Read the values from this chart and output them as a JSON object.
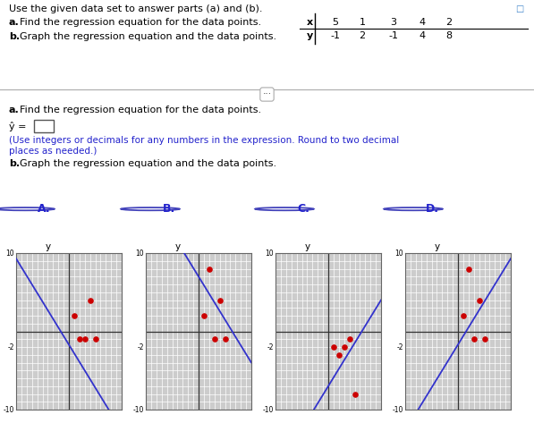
{
  "title_line1": "Use the given data set to answer parts (a) and (b).",
  "x_header": [
    "5",
    "1",
    "3",
    "4",
    "2"
  ],
  "y_header": [
    "-1",
    "2",
    "-1",
    "4",
    "8"
  ],
  "dot_color": "#cc0000",
  "line_color": "#3333cc",
  "bg_color": "#ffffff",
  "text_color_black": "#000000",
  "text_color_blue": "#2222cc",
  "separator_color": "#aaaaaa",
  "graph_bg": "#cccccc",
  "graph_grid_color": "#ffffff",
  "radio_color": "#4444bb",
  "graphs": [
    {
      "label": "A.",
      "slope": -1.1,
      "intercept": -1.7,
      "data_x": [
        1,
        2,
        3,
        4,
        5
      ],
      "data_y": [
        2,
        -1,
        -1,
        4,
        -1
      ]
    },
    {
      "label": "B.",
      "slope": -1.1,
      "intercept": 7.0,
      "data_x": [
        1,
        2,
        3,
        4,
        5
      ],
      "data_y": [
        2,
        8,
        -1,
        4,
        -1
      ]
    },
    {
      "label": "C.",
      "slope": 1.1,
      "intercept": -7.0,
      "data_x": [
        1,
        2,
        3,
        4,
        5
      ],
      "data_y": [
        -2,
        -3,
        -2,
        -1,
        -8
      ]
    },
    {
      "label": "D.",
      "slope": 1.1,
      "intercept": -1.7,
      "data_x": [
        1,
        2,
        3,
        4,
        5
      ],
      "data_y": [
        2,
        8,
        -1,
        4,
        -1
      ]
    }
  ]
}
